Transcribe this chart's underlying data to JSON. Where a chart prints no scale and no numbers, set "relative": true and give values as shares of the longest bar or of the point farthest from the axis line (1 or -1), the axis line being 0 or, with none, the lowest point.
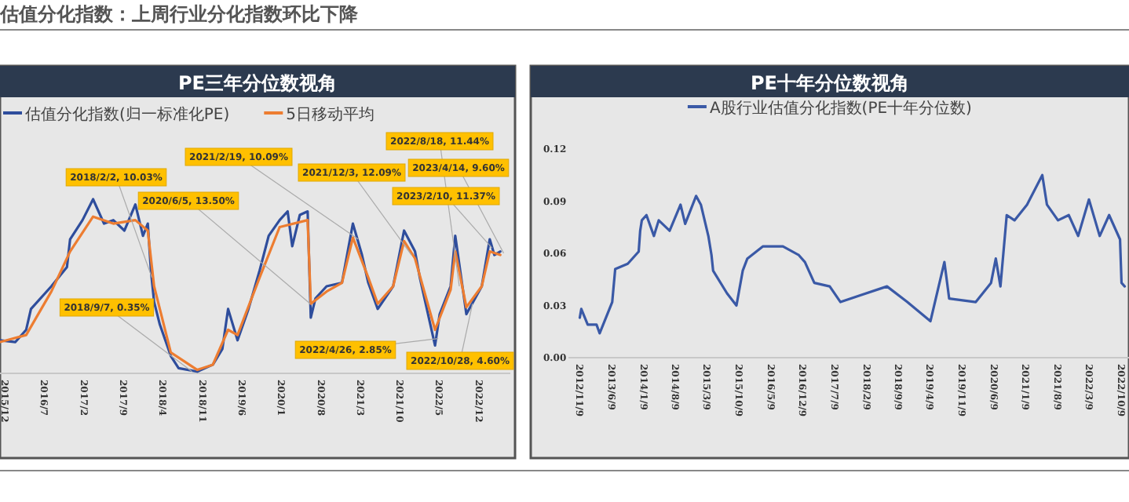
{
  "chart_data": [
    {
      "type": "line",
      "title": "PE三年分位数视角",
      "relative": true,
      "legend": "top left",
      "annotations": [
        "估值分化指数：上周行业分化指数环比下降",
        {
          "text": "2018/2/2, 10.03%",
          "x": "2018-02-02",
          "y": 0.55
        },
        {
          "text": "2018/9/7, 0.35%",
          "x": "2018-09-07",
          "y": 0.01
        },
        {
          "text": "2020/6/5, 13.50%",
          "x": "2020-06-05",
          "y": 0.4
        },
        {
          "text": "2021/2/19, 10.09%",
          "x": "2021-02-19",
          "y": 0.77
        },
        {
          "text": "2021/12/3, 12.09%",
          "x": "2021-12-03",
          "y": 0.68
        },
        {
          "text": "2022/4/26, 2.85%",
          "x": "2022-04-26",
          "y": 0.2
        },
        {
          "text": "2022/8/18, 11.44%",
          "x": "2022-08-18",
          "y": 0.5
        },
        {
          "text": "2022/10/28, 4.60%",
          "x": "2022-10-28",
          "y": 0.4
        },
        {
          "text": "2023/2/10, 11.37%",
          "x": "2023-02-10",
          "y": 0.72
        },
        {
          "text": "2023/4/14, 9.60%",
          "x": "2023-04-14",
          "y": 0.69
        }
      ],
      "xlim": [
        "2015-11-06",
        "2023-05-20"
      ],
      "xticks": [
        {
          "value": "2015-12",
          "label": "2015/12"
        },
        {
          "value": "2016-07",
          "label": "2016/7"
        },
        {
          "value": "2017-02",
          "label": "2017/2"
        },
        {
          "value": "2017-09",
          "label": "2017/9"
        },
        {
          "value": "2018-04",
          "label": "2018/4"
        },
        {
          "value": "2018-11",
          "label": "2018/11"
        },
        {
          "value": "2019-06",
          "label": "2019/6"
        },
        {
          "value": "2020-01",
          "label": "2020/1"
        },
        {
          "value": "2020-08",
          "label": "2020/8"
        },
        {
          "value": "2021-03",
          "label": "2021/3"
        },
        {
          "value": "2021-10",
          "label": "2021/10"
        },
        {
          "value": "2022-05",
          "label": "2022/5"
        },
        {
          "value": "2022-12",
          "label": "2022/12"
        }
      ],
      "series": [
        {
          "name": "估值分化指数(归一标准化PE)",
          "color": "#2e4d9c",
          "x": [
            "2015-11-06",
            "2016-01-28",
            "2016-03-26",
            "2016-04-21",
            "2016-08-09",
            "2016-11-01",
            "2016-11-18",
            "2017-01-24",
            "2017-03-22",
            "2017-05-20",
            "2017-07-09",
            "2017-09-07",
            "2017-11-05",
            "2017-12-16",
            "2018-01-11",
            "2018-01-28",
            "2018-02-14",
            "2018-03-17",
            "2018-05-15",
            "2018-06-26",
            "2018-10-05",
            "2018-12-28",
            "2019-02-17",
            "2019-03-20",
            "2019-05-10",
            "2019-07-08",
            "2019-09-06",
            "2019-10-25",
            "2019-12-23",
            "2020-02-04",
            "2020-02-29",
            "2020-04-10",
            "2020-05-22",
            "2020-06-08",
            "2020-07-03",
            "2020-09-01",
            "2020-11-23",
            "2021-01-21",
            "2021-03-11",
            "2021-04-14",
            "2021-06-04",
            "2021-08-26",
            "2021-10-24",
            "2021-12-22",
            "2022-01-17",
            "2022-04-09",
            "2022-05-04",
            "2022-07-02",
            "2022-07-27",
            "2022-09-25",
            "2022-12-17",
            "2023-01-29",
            "2023-02-23",
            "2023-03-27"
          ],
          "values": [
            0.19,
            0.18,
            0.25,
            0.37,
            0.5,
            0.61,
            0.77,
            0.88,
            1,
            0.86,
            0.88,
            0.82,
            0.97,
            0.79,
            0.86,
            0.59,
            0.41,
            0.28,
            0.1,
            0.03,
            0.01,
            0.05,
            0.14,
            0.37,
            0.19,
            0.37,
            0.59,
            0.79,
            0.88,
            0.93,
            0.73,
            0.91,
            0.93,
            0.32,
            0.43,
            0.5,
            0.52,
            0.86,
            0.68,
            0.52,
            0.37,
            0.5,
            0.82,
            0.7,
            0.55,
            0.16,
            0.34,
            0.5,
            0.79,
            0.34,
            0.5,
            0.77,
            0.68,
            0.7
          ]
        },
        {
          "name": "5日移动平均",
          "color": "#ed7d31",
          "x": [
            "2015-11-06",
            "2016-03-26",
            "2016-08-09",
            "2016-11-18",
            "2017-03-22",
            "2017-07-09",
            "2017-11-05",
            "2018-01-11",
            "2018-02-14",
            "2018-05-15",
            "2018-10-05",
            "2018-12-28",
            "2019-03-20",
            "2019-05-10",
            "2019-09-06",
            "2019-12-23",
            "2020-05-22",
            "2020-06-08",
            "2020-09-01",
            "2020-11-23",
            "2021-01-21",
            "2021-04-14",
            "2021-06-04",
            "2021-08-26",
            "2021-10-24",
            "2021-12-22",
            "2022-04-09",
            "2022-07-02",
            "2022-07-27",
            "2022-09-25",
            "2022-12-17",
            "2023-01-29",
            "2023-03-27"
          ],
          "values": [
            0.18,
            0.22,
            0.47,
            0.7,
            0.9,
            0.86,
            0.88,
            0.82,
            0.5,
            0.12,
            0.02,
            0.05,
            0.25,
            0.22,
            0.55,
            0.84,
            0.88,
            0.4,
            0.47,
            0.52,
            0.78,
            0.55,
            0.4,
            0.5,
            0.76,
            0.66,
            0.25,
            0.48,
            0.7,
            0.38,
            0.5,
            0.7,
            0.68
          ]
        }
      ]
    },
    {
      "type": "line",
      "title": "PE十年分位数视角",
      "legend": "top",
      "xlim": [
        "2012-08-25",
        "2022-12-01"
      ],
      "ylim": [
        0,
        0.12
      ],
      "yticks": [
        {
          "value": 0,
          "label": "0.00"
        },
        {
          "value": 0.03,
          "label": "0.03"
        },
        {
          "value": 0.06,
          "label": "0.06"
        },
        {
          "value": 0.09,
          "label": "0.09"
        },
        {
          "value": 0.12,
          "label": "0.12"
        }
      ],
      "xticks": [
        {
          "value": "2012-11-09",
          "label": "2012/11/9"
        },
        {
          "value": "2013-06-09",
          "label": "2013/6/9"
        },
        {
          "value": "2014-01-09",
          "label": "2014/1/9"
        },
        {
          "value": "2014-08-09",
          "label": "2014/8/9"
        },
        {
          "value": "2015-03-09",
          "label": "2015/3/9"
        },
        {
          "value": "2015-10-09",
          "label": "2015/10/9"
        },
        {
          "value": "2016-05-09",
          "label": "2016/5/9"
        },
        {
          "value": "2016-12-09",
          "label": "2016/12/9"
        },
        {
          "value": "2017-07-09",
          "label": "2017/7/9"
        },
        {
          "value": "2018-02-09",
          "label": "2018/2/9"
        },
        {
          "value": "2018-09-09",
          "label": "2018/9/9"
        },
        {
          "value": "2019-04-09",
          "label": "2019/4/9"
        },
        {
          "value": "2019-11-09",
          "label": "2019/11/9"
        },
        {
          "value": "2020-06-09",
          "label": "2020/6/9"
        },
        {
          "value": "2021-01-09",
          "label": "2021/1/9"
        },
        {
          "value": "2021-08-09",
          "label": "2021/8/9"
        },
        {
          "value": "2022-03-09",
          "label": "2022/3/9"
        },
        {
          "value": "2022-10-09",
          "label": "2022/10/9"
        }
      ],
      "series": [
        {
          "name": "A股行业估值分化指数(PE十年分位数)",
          "color": "#3a59a6",
          "x": [
            "2012-11-09",
            "2012-11-19",
            "2013-01-01",
            "2013-03-01",
            "2013-03-22",
            "2013-06-14",
            "2013-07-04",
            "2013-09-26",
            "2013-12-08",
            "2013-12-18",
            "2013-12-29",
            "2014-01-29",
            "2014-03-20",
            "2014-04-21",
            "2014-07-03",
            "2014-09-14",
            "2014-10-15",
            "2014-12-27",
            "2015-01-28",
            "2015-03-19",
            "2015-04-09",
            "2015-04-20",
            "2015-07-22",
            "2015-09-23",
            "2015-11-04",
            "2015-12-05",
            "2016-03-17",
            "2016-07-30",
            "2016-11-13",
            "2016-12-24",
            "2017-02-25",
            "2017-06-08",
            "2017-08-19",
            "2018-01-02",
            "2018-06-26",
            "2018-11-09",
            "2019-04-13",
            "2019-07-15",
            "2019-08-16",
            "2020-02-10",
            "2020-05-22",
            "2020-06-23",
            "2020-07-24",
            "2020-09-04",
            "2020-10-26",
            "2021-01-18",
            "2021-04-30",
            "2021-05-31",
            "2021-08-13",
            "2021-10-24",
            "2021-12-26",
            "2022-03-08",
            "2022-05-19",
            "2022-07-21",
            "2022-10-02",
            "2022-10-12",
            "2022-11-02"
          ],
          "values": [
            0.023,
            0.028,
            0.019,
            0.019,
            0.014,
            0.032,
            0.051,
            0.054,
            0.061,
            0.073,
            0.079,
            0.082,
            0.07,
            0.079,
            0.073,
            0.088,
            0.077,
            0.093,
            0.088,
            0.07,
            0.059,
            0.05,
            0.037,
            0.03,
            0.05,
            0.057,
            0.064,
            0.064,
            0.059,
            0.055,
            0.043,
            0.041,
            0.032,
            0.036,
            0.041,
            0.032,
            0.021,
            0.055,
            0.034,
            0.032,
            0.043,
            0.057,
            0.041,
            0.082,
            0.079,
            0.088,
            0.105,
            0.088,
            0.079,
            0.082,
            0.07,
            0.091,
            0.07,
            0.082,
            0.068,
            0.043,
            0.041
          ]
        }
      ]
    }
  ]
}
